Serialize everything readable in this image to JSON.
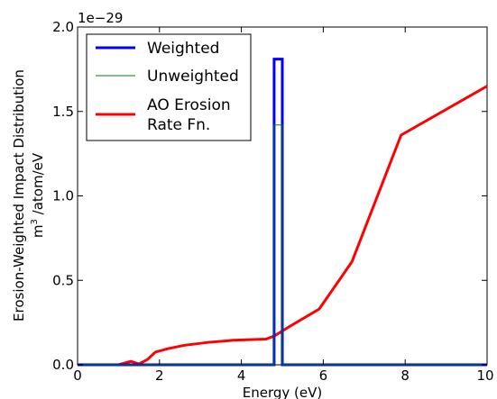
{
  "chart_data": {
    "type": "line",
    "xlabel": "Energy (eV)",
    "ylabel_line1": "Erosion-Weighted Impact Distribution",
    "ylabel_line2_pre": "m",
    "ylabel_line2_sup": "3",
    "ylabel_line2_post": " /atom/eV",
    "offset_text": "1e−29",
    "xlim": [
      0,
      10
    ],
    "ylim": [
      0,
      2.0
    ],
    "xticks": [
      0,
      2,
      4,
      6,
      8,
      10
    ],
    "xtick_labels": [
      "0",
      "2",
      "4",
      "6",
      "8",
      "10"
    ],
    "yticks": [
      0,
      0.5,
      1.0,
      1.5,
      2.0
    ],
    "ytick_labels": [
      "0.0",
      "0.5",
      "1.0",
      "1.5",
      "2.0"
    ],
    "legend_position": "top-left",
    "grid": false,
    "series": [
      {
        "name": "Weighted",
        "color": "#0000ff",
        "x": [
          0,
          4.8,
          4.8,
          5.0,
          5.0,
          10
        ],
        "y": [
          0,
          0,
          1.81,
          1.81,
          0,
          0
        ]
      },
      {
        "name": "Unweighted",
        "color": "#008000",
        "x": [
          0,
          4.8,
          4.8,
          5.0,
          5.0,
          10
        ],
        "y": [
          0,
          0,
          1.42,
          1.42,
          0,
          0
        ]
      },
      {
        "name": "AO Erosion\nRate Fn.",
        "color": "#ff0000",
        "x": [
          0,
          1.0,
          1.3,
          1.5,
          1.7,
          1.9,
          2.2,
          2.6,
          3.2,
          3.8,
          4.6,
          4.8,
          5.2,
          5.9,
          6.7,
          7.9,
          10.0
        ],
        "y": [
          0,
          0,
          0.02,
          0.005,
          0.03,
          0.075,
          0.095,
          0.115,
          0.133,
          0.145,
          0.152,
          0.17,
          0.23,
          0.33,
          0.61,
          1.36,
          1.65
        ]
      }
    ]
  }
}
